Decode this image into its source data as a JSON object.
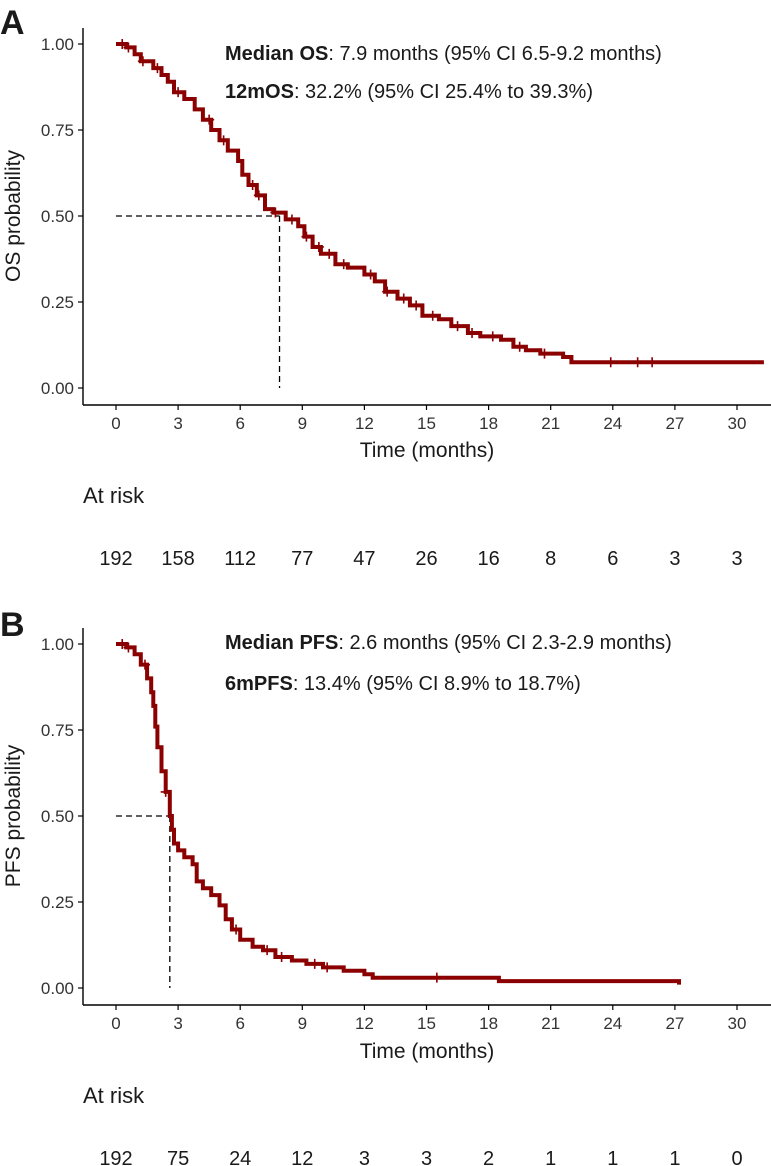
{
  "chart_data": [
    {
      "panel": "A",
      "type": "line",
      "subtype": "kaplan-meier",
      "xlabel": "Time (months)",
      "ylabel": "OS probability",
      "xlim": [
        0,
        31.3
      ],
      "ylim": [
        0,
        1
      ],
      "xticks": [
        0,
        3,
        6,
        9,
        12,
        15,
        18,
        21,
        24,
        27,
        30
      ],
      "yticks": [
        "0.00",
        "0.25",
        "0.50",
        "0.75",
        "1.00"
      ],
      "annotation_lines": [
        {
          "bold": "Median OS",
          "rest": ": 7.9 months (95% CI 6.5-9.2 months)"
        },
        {
          "bold": "12mOS",
          "rest": ": 32.2% (95% CI 25.4% to 39.3%)"
        }
      ],
      "median": 7.9,
      "curve_color": "#8b0000",
      "curve": [
        [
          0,
          1.0
        ],
        [
          0.5,
          0.99
        ],
        [
          0.9,
          0.97
        ],
        [
          1.2,
          0.95
        ],
        [
          1.8,
          0.93
        ],
        [
          2.2,
          0.91
        ],
        [
          2.5,
          0.89
        ],
        [
          2.8,
          0.86
        ],
        [
          3.3,
          0.84
        ],
        [
          3.8,
          0.81
        ],
        [
          4.2,
          0.78
        ],
        [
          4.6,
          0.75
        ],
        [
          5.0,
          0.72
        ],
        [
          5.4,
          0.69
        ],
        [
          5.9,
          0.66
        ],
        [
          6.1,
          0.62
        ],
        [
          6.4,
          0.59
        ],
        [
          6.8,
          0.56
        ],
        [
          7.2,
          0.52
        ],
        [
          7.6,
          0.51
        ],
        [
          8.2,
          0.49
        ],
        [
          8.8,
          0.47
        ],
        [
          9.1,
          0.44
        ],
        [
          9.5,
          0.41
        ],
        [
          9.9,
          0.39
        ],
        [
          10.6,
          0.36
        ],
        [
          11.2,
          0.35
        ],
        [
          12.0,
          0.33
        ],
        [
          12.5,
          0.31
        ],
        [
          13.0,
          0.28
        ],
        [
          13.6,
          0.26
        ],
        [
          14.2,
          0.24
        ],
        [
          14.8,
          0.21
        ],
        [
          15.6,
          0.2
        ],
        [
          16.2,
          0.18
        ],
        [
          17.0,
          0.16
        ],
        [
          17.6,
          0.15
        ],
        [
          18.6,
          0.14
        ],
        [
          19.2,
          0.12
        ],
        [
          19.8,
          0.11
        ],
        [
          20.5,
          0.1
        ],
        [
          21.6,
          0.09
        ],
        [
          22.0,
          0.075
        ],
        [
          31.3,
          0.075
        ]
      ],
      "censor_x": [
        0.3,
        0.6,
        1.3,
        2.0,
        3.0,
        4.5,
        5.2,
        6.6,
        6.9,
        7.7,
        8.5,
        9.2,
        9.8,
        10.3,
        11.0,
        12.3,
        13.1,
        13.9,
        14.5,
        15.3,
        16.5,
        17.2,
        18.2,
        19.5,
        20.7,
        23.9,
        25.2,
        25.9
      ],
      "at_risk_title": "At risk",
      "at_risk": [
        192,
        158,
        112,
        77,
        47,
        26,
        16,
        8,
        6,
        3,
        3
      ]
    },
    {
      "panel": "B",
      "type": "line",
      "subtype": "kaplan-meier",
      "xlabel": "Time (months)",
      "ylabel": "PFS probability",
      "xlim": [
        0,
        31.3
      ],
      "ylim": [
        0,
        1
      ],
      "xticks": [
        0,
        3,
        6,
        9,
        12,
        15,
        18,
        21,
        24,
        27,
        30
      ],
      "yticks": [
        "0.00",
        "0.25",
        "0.50",
        "0.75",
        "1.00"
      ],
      "annotation_lines": [
        {
          "bold": "Median PFS",
          "rest": ": 2.6 months (95% CI 2.3-2.9 months)"
        },
        {
          "bold": "6mPFS",
          "rest": ": 13.4% (95% CI 8.9% to 18.7%)"
        }
      ],
      "median": 2.6,
      "curve_color": "#8b0000",
      "curve": [
        [
          0,
          1.0
        ],
        [
          0.5,
          0.99
        ],
        [
          0.9,
          0.97
        ],
        [
          1.2,
          0.94
        ],
        [
          1.5,
          0.9
        ],
        [
          1.7,
          0.86
        ],
        [
          1.8,
          0.82
        ],
        [
          1.9,
          0.76
        ],
        [
          2.0,
          0.7
        ],
        [
          2.2,
          0.63
        ],
        [
          2.4,
          0.57
        ],
        [
          2.6,
          0.5
        ],
        [
          2.7,
          0.46
        ],
        [
          2.8,
          0.42
        ],
        [
          3.0,
          0.4
        ],
        [
          3.3,
          0.38
        ],
        [
          3.7,
          0.36
        ],
        [
          3.9,
          0.31
        ],
        [
          4.2,
          0.29
        ],
        [
          4.6,
          0.27
        ],
        [
          5.0,
          0.24
        ],
        [
          5.3,
          0.2
        ],
        [
          5.6,
          0.17
        ],
        [
          6.0,
          0.14
        ],
        [
          6.6,
          0.12
        ],
        [
          7.1,
          0.11
        ],
        [
          7.7,
          0.09
        ],
        [
          8.5,
          0.08
        ],
        [
          9.2,
          0.07
        ],
        [
          10.0,
          0.06
        ],
        [
          11.0,
          0.05
        ],
        [
          12.0,
          0.04
        ],
        [
          12.4,
          0.03
        ],
        [
          18.5,
          0.02
        ],
        [
          27.2,
          0.01
        ]
      ],
      "censor_x": [
        0.3,
        0.6,
        1.4,
        2.4,
        5.8,
        7.3,
        8.0,
        9.6,
        10.2,
        15.5
      ],
      "at_risk_title": "At risk",
      "at_risk": [
        192,
        75,
        24,
        12,
        3,
        3,
        2,
        1,
        1,
        1,
        0
      ]
    }
  ]
}
